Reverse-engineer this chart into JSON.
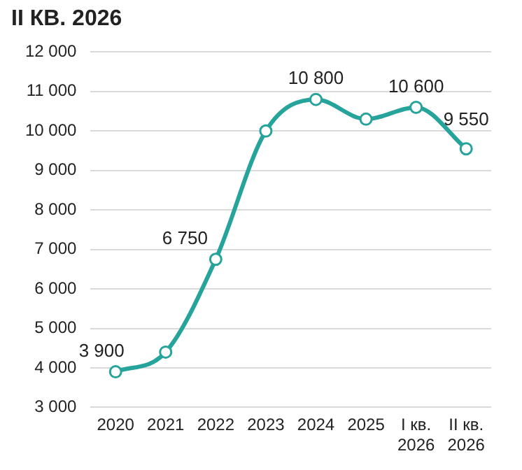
{
  "chart_data": {
    "type": "line",
    "title": "II КВ. 2026",
    "categories": [
      "2020",
      "2021",
      "2022",
      "2023",
      "2024",
      "2025",
      "I кв. 2026",
      "II кв. 2026"
    ],
    "series": [
      {
        "color": "#26a39b",
        "values": [
          3900,
          4400,
          6750,
          10000,
          10800,
          10300,
          10600,
          9550
        ],
        "value_labels": [
          "3 900",
          null,
          "6 750",
          null,
          "10 800",
          null,
          "10 600",
          "9 550"
        ]
      }
    ],
    "ylim": [
      3000,
      12000
    ],
    "yticks": [
      {
        "value": 3000,
        "label": "3 000"
      },
      {
        "value": 4000,
        "label": "4 000"
      },
      {
        "value": 5000,
        "label": "5 000"
      },
      {
        "value": 6000,
        "label": "6 000"
      },
      {
        "value": 7000,
        "label": "7 000"
      },
      {
        "value": 8000,
        "label": "8 000"
      },
      {
        "value": 9000,
        "label": "9 000"
      },
      {
        "value": 10000,
        "label": "10 000"
      },
      {
        "value": 11000,
        "label": "11 000"
      },
      {
        "value": 12000,
        "label": "12 000"
      }
    ],
    "grid": "y",
    "legend": false,
    "marker": "circle",
    "line_style": "solid"
  }
}
